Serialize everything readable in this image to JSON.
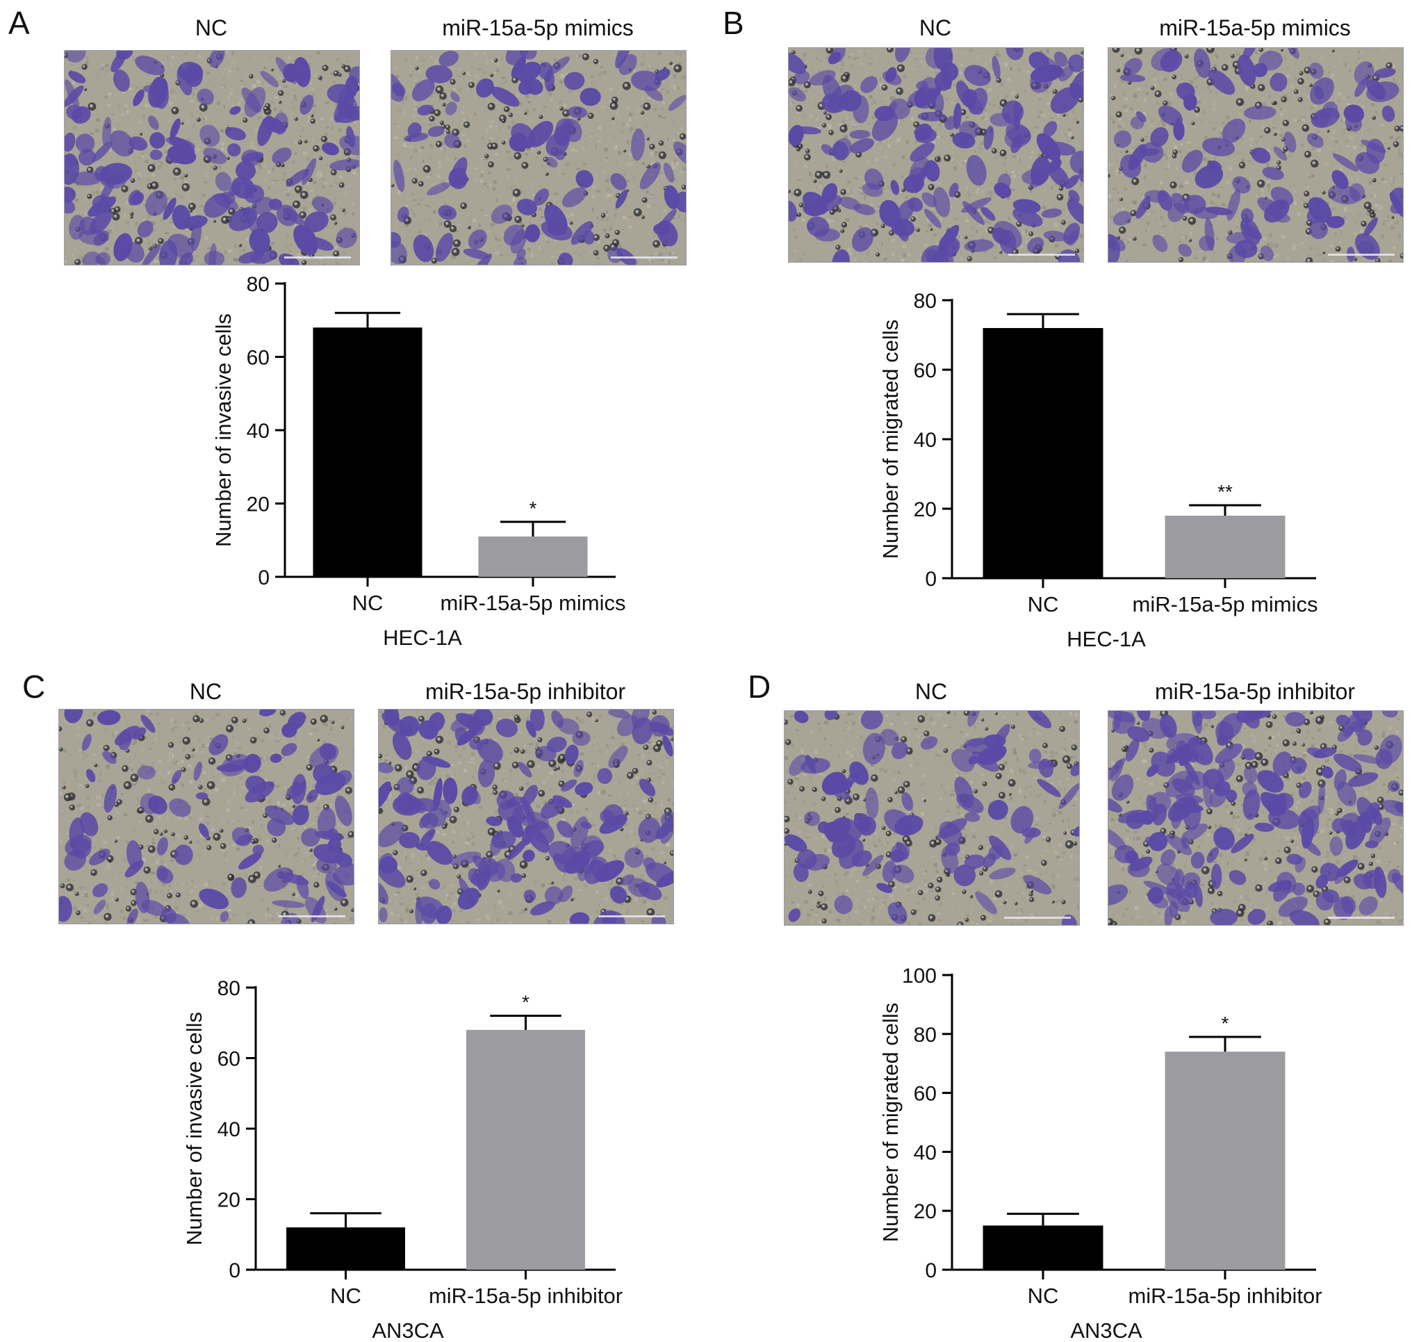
{
  "figure": {
    "panels": [
      {
        "letter": "A",
        "images": [
          {
            "title": "NC",
            "stain_density": 0.4
          },
          {
            "title": "miR-15a-5p mimics",
            "stain_density": 0.2
          }
        ],
        "chart_data": {
          "type": "bar",
          "categories": [
            "NC",
            "miR-15a-5p mimics"
          ],
          "values": [
            68,
            11
          ],
          "errors": [
            4,
            4
          ],
          "significance": [
            "",
            "*"
          ],
          "bar_colors": [
            "#000000",
            "#9b9ba0"
          ],
          "ylabel": "Number of invasive cells",
          "xlabel": "HEC-1A",
          "ylim": [
            0,
            80
          ],
          "yticks": [
            0,
            20,
            40,
            60,
            80
          ]
        }
      },
      {
        "letter": "B",
        "images": [
          {
            "title": "NC",
            "stain_density": 0.45
          },
          {
            "title": "miR-15a-5p mimics",
            "stain_density": 0.25
          }
        ],
        "chart_data": {
          "type": "bar",
          "categories": [
            "NC",
            "miR-15a-5p mimics"
          ],
          "values": [
            72,
            18
          ],
          "errors": [
            4,
            3
          ],
          "significance": [
            "",
            "**"
          ],
          "bar_colors": [
            "#000000",
            "#9b9ba0"
          ],
          "ylabel": "Number of migrated cells",
          "xlabel": "HEC-1A",
          "ylim": [
            0,
            80
          ],
          "yticks": [
            0,
            20,
            40,
            60,
            80
          ]
        }
      },
      {
        "letter": "C",
        "images": [
          {
            "title": "NC",
            "stain_density": 0.22
          },
          {
            "title": "miR-15a-5p inhibitor",
            "stain_density": 0.45
          }
        ],
        "chart_data": {
          "type": "bar",
          "categories": [
            "NC",
            "miR-15a-5p inhibitor"
          ],
          "values": [
            12,
            68
          ],
          "errors": [
            4,
            4
          ],
          "significance": [
            "",
            "*"
          ],
          "bar_colors": [
            "#000000",
            "#9b9ba0"
          ],
          "ylabel": "Number of invasive cells",
          "xlabel": "AN3CA",
          "ylim": [
            0,
            80
          ],
          "yticks": [
            0,
            20,
            40,
            60,
            80
          ]
        }
      },
      {
        "letter": "D",
        "images": [
          {
            "title": "NC",
            "stain_density": 0.18
          },
          {
            "title": "miR-15a-5p inhibitor",
            "stain_density": 0.55
          }
        ],
        "chart_data": {
          "type": "bar",
          "categories": [
            "NC",
            "miR-15a-5p inhibitor"
          ],
          "values": [
            15,
            74
          ],
          "errors": [
            4,
            5
          ],
          "significance": [
            "",
            "*"
          ],
          "bar_colors": [
            "#000000",
            "#9b9ba0"
          ],
          "ylabel": "Number of migrated cells",
          "xlabel": "AN3CA",
          "ylim": [
            0,
            100
          ],
          "yticks": [
            0,
            20,
            40,
            60,
            80,
            100
          ]
        }
      }
    ],
    "colors": {
      "stain_purple": "#5a4aa6",
      "background_gray": "#a8a596"
    }
  }
}
